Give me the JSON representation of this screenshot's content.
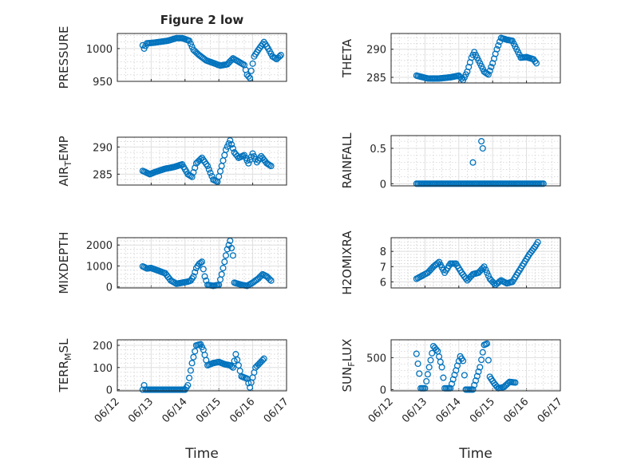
{
  "colors": {
    "marker": "#0072BD",
    "axis": "#262626",
    "grid": "#dfdfdf",
    "background": "#ffffff"
  },
  "chart_data": [
    {
      "type": "scatter",
      "title": "Figure 2 low",
      "xlabel": "",
      "ylabel": "PRESSURE",
      "xlim": [
        "2024-06-12",
        "2024-06-17"
      ],
      "ylim": [
        950,
        1023
      ],
      "yticks": [
        950,
        1000
      ],
      "ytick_labels": [
        "950",
        "1000"
      ],
      "xticks": [
        "2024-06-12",
        "2024-06-13",
        "2024-06-14",
        "2024-06-15",
        "2024-06-16",
        "2024-06-17"
      ],
      "xtick_labels": [
        "06/12",
        "06/13",
        "06/14",
        "06/15",
        "06/16",
        "06/17"
      ],
      "show_xtick_labels": false,
      "grid": true,
      "minor_grid": true,
      "series": [
        {
          "x_start": "2024-06-12 18:00",
          "x_step_hours": 1,
          "y_keys": [
            [
              0,
              1005
            ],
            [
              1,
              1000
            ],
            [
              3,
              1008
            ],
            [
              8,
              1009
            ],
            [
              18,
              1012
            ],
            [
              24,
              1016
            ],
            [
              28,
              1016
            ],
            [
              33,
              1012
            ],
            [
              36,
              998
            ],
            [
              40,
              990
            ],
            [
              45,
              982
            ],
            [
              50,
              978
            ],
            [
              55,
              974
            ],
            [
              60,
              976
            ],
            [
              64,
              985
            ],
            [
              68,
              980
            ],
            [
              72,
              975
            ],
            [
              74,
              960
            ],
            [
              76,
              955
            ],
            [
              79,
              988
            ],
            [
              82,
              998
            ],
            [
              86,
              1010
            ],
            [
              89,
              1000
            ],
            [
              92,
              988
            ],
            [
              95,
              984
            ],
            [
              98,
              990
            ]
          ]
        }
      ]
    },
    {
      "type": "scatter",
      "title": "",
      "xlabel": "",
      "ylabel": "THETA",
      "xlim": [
        "2024-06-12",
        "2024-06-17"
      ],
      "ylim": [
        284,
        292.8
      ],
      "yticks": [
        285,
        290
      ],
      "ytick_labels": [
        "285",
        "290"
      ],
      "xticks": [
        "2024-06-12",
        "2024-06-13",
        "2024-06-14",
        "2024-06-15",
        "2024-06-16",
        "2024-06-17"
      ],
      "xtick_labels": [
        "06/12",
        "06/13",
        "06/14",
        "06/15",
        "06/16",
        "06/17"
      ],
      "show_xtick_labels": false,
      "grid": true,
      "minor_grid": true,
      "series": [
        {
          "x_start": "2024-06-12 18:00",
          "x_step_hours": 1,
          "y_keys": [
            [
              0,
              285.3
            ],
            [
              8,
              284.8
            ],
            [
              16,
              284.8
            ],
            [
              24,
              285.0
            ],
            [
              30,
              285.3
            ],
            [
              33,
              284.5
            ],
            [
              36,
              286.0
            ],
            [
              39,
              288.5
            ],
            [
              41,
              289.5
            ],
            [
              44,
              288.0
            ],
            [
              48,
              286.0
            ],
            [
              51,
              285.5
            ],
            [
              54,
              287.5
            ],
            [
              57,
              290.0
            ],
            [
              60,
              292.0
            ],
            [
              64,
              291.7
            ],
            [
              68,
              291.5
            ],
            [
              71,
              290.0
            ],
            [
              74,
              288.5
            ],
            [
              78,
              288.6
            ],
            [
              83,
              288.2
            ],
            [
              85,
              287.5
            ]
          ]
        }
      ]
    },
    {
      "type": "scatter",
      "title": "",
      "xlabel": "",
      "ylabel": "AIR_TEMP",
      "ylabel_parts": [
        "AIR",
        "T",
        "EMP"
      ],
      "xlim": [
        "2024-06-12",
        "2024-06-17"
      ],
      "ylim": [
        283,
        291.8
      ],
      "yticks": [
        285,
        290
      ],
      "ytick_labels": [
        "285",
        "290"
      ],
      "xticks": [
        "2024-06-12",
        "2024-06-13",
        "2024-06-14",
        "2024-06-15",
        "2024-06-16",
        "2024-06-17"
      ],
      "xtick_labels": [
        "06/12",
        "06/13",
        "06/14",
        "06/15",
        "06/16",
        "06/17"
      ],
      "show_xtick_labels": false,
      "grid": true,
      "minor_grid": true,
      "series": [
        {
          "x_start": "2024-06-12 18:00",
          "x_step_hours": 1,
          "y_keys": [
            [
              0,
              285.6
            ],
            [
              5,
              285.0
            ],
            [
              10,
              285.5
            ],
            [
              16,
              286.0
            ],
            [
              22,
              286.3
            ],
            [
              28,
              286.8
            ],
            [
              32,
              285.0
            ],
            [
              35,
              284.5
            ],
            [
              38,
              287.0
            ],
            [
              42,
              288.0
            ],
            [
              46,
              286.5
            ],
            [
              50,
              284.0
            ],
            [
              53,
              283.6
            ],
            [
              56,
              286.5
            ],
            [
              59,
              289.5
            ],
            [
              62,
              291.2
            ],
            [
              65,
              289.0
            ],
            [
              68,
              288.0
            ],
            [
              72,
              288.5
            ],
            [
              75,
              287.0
            ],
            [
              78,
              288.8
            ],
            [
              81,
              287.2
            ],
            [
              84,
              288.3
            ],
            [
              88,
              287.0
            ],
            [
              91,
              286.5
            ]
          ]
        }
      ]
    },
    {
      "type": "scatter",
      "title": "",
      "xlabel": "",
      "ylabel": "RAINFALL",
      "xlim": [
        "2024-06-12",
        "2024-06-17"
      ],
      "ylim": [
        -0.03,
        0.68
      ],
      "yticks": [
        0,
        0.5
      ],
      "ytick_labels": [
        "0",
        "0.5"
      ],
      "xticks": [
        "2024-06-12",
        "2024-06-13",
        "2024-06-14",
        "2024-06-15",
        "2024-06-16",
        "2024-06-17"
      ],
      "xtick_labels": [
        "06/12",
        "06/13",
        "06/14",
        "06/15",
        "06/16",
        "06/17"
      ],
      "show_xtick_labels": false,
      "grid": true,
      "minor_grid": true,
      "series": [
        {
          "x_start": "2024-06-12 18:00",
          "x_step_hours": 1,
          "baseline": 0,
          "spikes": [
            [
              40,
              0.3
            ],
            [
              46,
              0.6
            ],
            [
              47,
              0.5
            ]
          ]
        }
      ]
    },
    {
      "type": "scatter",
      "title": "",
      "xlabel": "",
      "ylabel": "MIXDEPTH",
      "xlim": [
        "2024-06-12",
        "2024-06-17"
      ],
      "ylim": [
        -50,
        2350
      ],
      "yticks": [
        0,
        1000,
        2000
      ],
      "ytick_labels": [
        "0",
        "1000",
        "2000"
      ],
      "xticks": [
        "2024-06-12",
        "2024-06-13",
        "2024-06-14",
        "2024-06-15",
        "2024-06-16",
        "2024-06-17"
      ],
      "xtick_labels": [
        "06/12",
        "06/13",
        "06/14",
        "06/15",
        "06/16",
        "06/17"
      ],
      "show_xtick_labels": false,
      "grid": true,
      "minor_grid": true,
      "series": [
        {
          "x_start": "2024-06-12 18:00",
          "x_step_hours": 1,
          "y_keys": [
            [
              0,
              980
            ],
            [
              3,
              880
            ],
            [
              6,
              900
            ],
            [
              12,
              750
            ],
            [
              16,
              650
            ],
            [
              20,
              300
            ],
            [
              24,
              150
            ],
            [
              28,
              200
            ],
            [
              32,
              250
            ],
            [
              34,
              300
            ],
            [
              36,
              500
            ],
            [
              38,
              900
            ],
            [
              40,
              1100
            ],
            [
              42,
              1200
            ],
            [
              44,
              500
            ],
            [
              46,
              100
            ],
            [
              50,
              50
            ],
            [
              54,
              100
            ],
            [
              56,
              600
            ],
            [
              58,
              1200
            ],
            [
              60,
              1800
            ],
            [
              62,
              2200
            ],
            [
              64,
              1500
            ],
            [
              65,
              200
            ],
            [
              70,
              100
            ],
            [
              74,
              50
            ],
            [
              78,
              200
            ],
            [
              82,
              400
            ],
            [
              85,
              600
            ],
            [
              88,
              500
            ],
            [
              91,
              300
            ]
          ]
        }
      ]
    },
    {
      "type": "scatter",
      "title": "",
      "xlabel": "",
      "ylabel": "H2OMIXRA",
      "xlim": [
        "2024-06-12",
        "2024-06-17"
      ],
      "ylim": [
        5.6,
        8.9
      ],
      "yticks": [
        6,
        7,
        8
      ],
      "ytick_labels": [
        "6",
        "7",
        "8"
      ],
      "xticks": [
        "2024-06-12",
        "2024-06-13",
        "2024-06-14",
        "2024-06-15",
        "2024-06-16",
        "2024-06-17"
      ],
      "xtick_labels": [
        "06/12",
        "06/13",
        "06/14",
        "06/15",
        "06/16",
        "06/17"
      ],
      "show_xtick_labels": false,
      "grid": true,
      "minor_grid": true,
      "series": [
        {
          "x_start": "2024-06-12 18:00",
          "x_step_hours": 1,
          "y_keys": [
            [
              0,
              6.2
            ],
            [
              4,
              6.4
            ],
            [
              8,
              6.6
            ],
            [
              12,
              7.0
            ],
            [
              16,
              7.3
            ],
            [
              20,
              6.6
            ],
            [
              24,
              7.2
            ],
            [
              28,
              7.2
            ],
            [
              32,
              6.6
            ],
            [
              36,
              6.1
            ],
            [
              40,
              6.5
            ],
            [
              44,
              6.6
            ],
            [
              48,
              7.0
            ],
            [
              52,
              6.2
            ],
            [
              56,
              5.8
            ],
            [
              60,
              6.1
            ],
            [
              64,
              5.9
            ],
            [
              68,
              6.0
            ],
            [
              72,
              6.6
            ],
            [
              76,
              7.2
            ],
            [
              80,
              7.8
            ],
            [
              84,
              8.3
            ],
            [
              86,
              8.6
            ]
          ]
        }
      ]
    },
    {
      "type": "scatter",
      "title": "",
      "xlabel": "Time",
      "ylabel": "TERR_MSL",
      "ylabel_parts": [
        "TERR",
        "M",
        "SL"
      ],
      "xlim": [
        "2024-06-12",
        "2024-06-17"
      ],
      "ylim": [
        -5,
        225
      ],
      "yticks": [
        0,
        100,
        200
      ],
      "ytick_labels": [
        "0",
        "100",
        "200"
      ],
      "xticks": [
        "2024-06-12",
        "2024-06-13",
        "2024-06-14",
        "2024-06-15",
        "2024-06-16",
        "2024-06-17"
      ],
      "xtick_labels": [
        "06/12",
        "06/13",
        "06/14",
        "06/15",
        "06/16",
        "06/17"
      ],
      "show_xtick_labels": true,
      "grid": true,
      "minor_grid": true,
      "series": [
        {
          "x_start": "2024-06-12 18:00",
          "x_step_hours": 1,
          "y_keys": [
            [
              0,
              0
            ],
            [
              1,
              20
            ],
            [
              2,
              0
            ],
            [
              30,
              0
            ],
            [
              32,
              20
            ],
            [
              35,
              120
            ],
            [
              38,
              200
            ],
            [
              41,
              205
            ],
            [
              43,
              180
            ],
            [
              46,
              110
            ],
            [
              50,
              120
            ],
            [
              54,
              125
            ],
            [
              58,
              115
            ],
            [
              62,
              110
            ],
            [
              64,
              100
            ],
            [
              66,
              160
            ],
            [
              70,
              60
            ],
            [
              74,
              50
            ],
            [
              76,
              10
            ],
            [
              80,
              100
            ],
            [
              83,
              120
            ],
            [
              86,
              140
            ]
          ]
        }
      ]
    },
    {
      "type": "scatter",
      "title": "",
      "xlabel": "Time",
      "ylabel": "SUN_FLUX",
      "ylabel_parts": [
        "SUN",
        "F",
        "LUX"
      ],
      "xlim": [
        "2024-06-12",
        "2024-06-17"
      ],
      "ylim": [
        -20,
        780
      ],
      "yticks": [
        0,
        500
      ],
      "ytick_labels": [
        "0",
        "500"
      ],
      "xticks": [
        "2024-06-12",
        "2024-06-13",
        "2024-06-14",
        "2024-06-15",
        "2024-06-16",
        "2024-06-17"
      ],
      "xtick_labels": [
        "06/12",
        "06/13",
        "06/14",
        "06/15",
        "06/16",
        "06/17"
      ],
      "show_xtick_labels": true,
      "grid": true,
      "minor_grid": true,
      "series": [
        {
          "x_start": "2024-06-12 18:00",
          "x_step_hours": 1,
          "y_keys": [
            [
              0,
              560
            ],
            [
              2,
              250
            ],
            [
              3,
              20
            ],
            [
              6,
              20
            ],
            [
              9,
              350
            ],
            [
              12,
              680
            ],
            [
              15,
              600
            ],
            [
              18,
              350
            ],
            [
              20,
              20
            ],
            [
              24,
              20
            ],
            [
              28,
              300
            ],
            [
              31,
              520
            ],
            [
              33,
              450
            ],
            [
              35,
              0
            ],
            [
              40,
              0
            ],
            [
              45,
              350
            ],
            [
              48,
              700
            ],
            [
              50,
              720
            ],
            [
              52,
              200
            ],
            [
              55,
              100
            ],
            [
              58,
              20
            ],
            [
              62,
              40
            ],
            [
              66,
              120
            ],
            [
              70,
              110
            ]
          ]
        }
      ]
    }
  ]
}
